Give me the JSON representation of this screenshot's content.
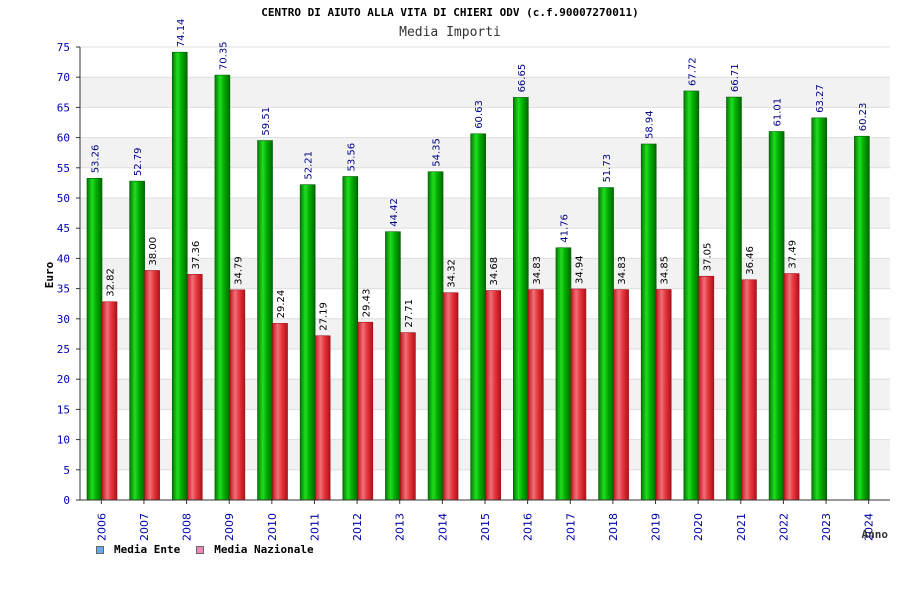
{
  "chart_data": {
    "type": "bar",
    "title": "CENTRO DI AIUTO ALLA VITA DI CHIERI ODV (c.f.90007270011)",
    "subtitle": "Media Importi",
    "ylabel": "Euro",
    "xlabel": "Anno",
    "ylim": [
      0,
      75
    ],
    "yticks": [
      0,
      5,
      10,
      15,
      20,
      25,
      30,
      35,
      40,
      45,
      50,
      55,
      60,
      65,
      70,
      75
    ],
    "categories": [
      "2006",
      "2007",
      "2008",
      "2009",
      "2010",
      "2011",
      "2012",
      "2013",
      "2014",
      "2015",
      "2016",
      "2017",
      "2018",
      "2019",
      "2020",
      "2021",
      "2022",
      "2023",
      "2024"
    ],
    "series": [
      {
        "name": "Media Ente",
        "color": "#00bb00",
        "values": [
          53.26,
          52.79,
          74.14,
          70.35,
          59.51,
          52.21,
          53.56,
          44.42,
          54.35,
          60.63,
          66.65,
          41.76,
          51.73,
          58.94,
          67.72,
          66.71,
          61.01,
          63.27,
          60.23
        ],
        "labels": [
          "53.26",
          "52.79",
          "74.14",
          "70.35",
          "59.51",
          "52.21",
          "53.56",
          "44.42",
          "54.35",
          "60.63",
          "66.65",
          "41.76",
          "51.73",
          "58.94",
          "67.72",
          "66.71",
          "61.01",
          "63.27",
          "60.23"
        ]
      },
      {
        "name": "Media Nazionale",
        "color": "#e8333a",
        "values": [
          32.82,
          38.0,
          37.36,
          34.79,
          29.24,
          27.19,
          29.43,
          27.71,
          34.32,
          34.68,
          34.83,
          34.94,
          34.83,
          34.85,
          37.05,
          36.46,
          37.49,
          null,
          null
        ],
        "labels": [
          "32.82",
          "38.00",
          "37.36",
          "34.79",
          "29.24",
          "27.19",
          "29.43",
          "27.71",
          "34.32",
          "34.68",
          "34.83",
          "34.94",
          "34.83",
          "34.85",
          "37.05",
          "36.46",
          "37.49",
          null,
          null
        ]
      }
    ],
    "legend": [
      {
        "label": "Media Ente",
        "color": "#66aaee"
      },
      {
        "label": "Media Nazionale",
        "color": "#ee88bb"
      }
    ],
    "legend_position": "bottom-left"
  }
}
